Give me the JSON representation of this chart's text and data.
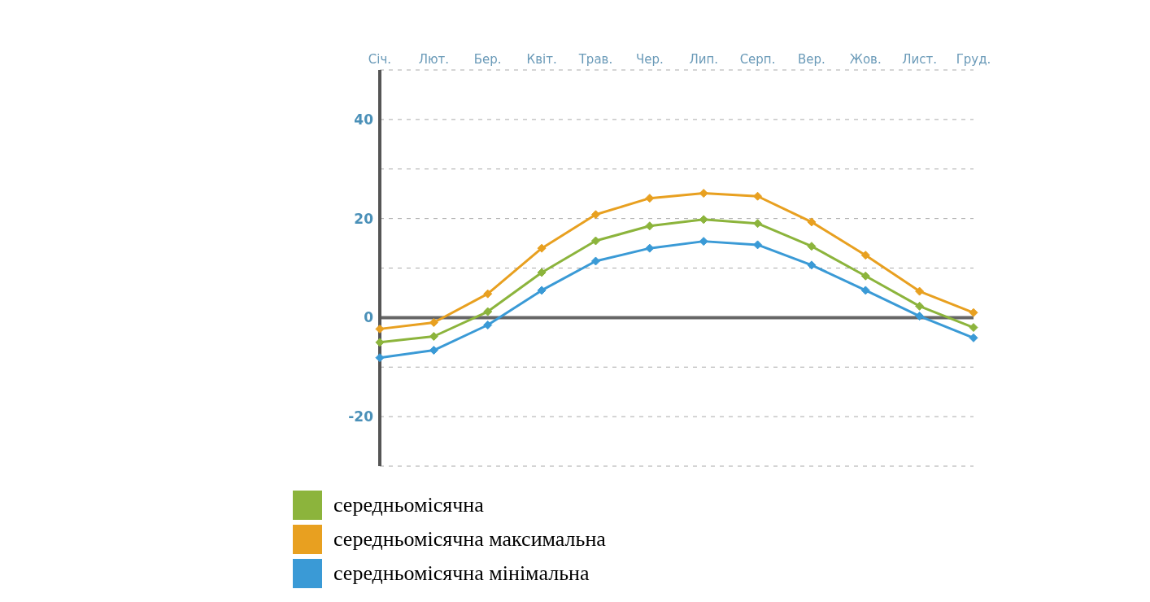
{
  "chart_data": {
    "type": "line",
    "categories": [
      "Січ.",
      "Лют.",
      "Бер.",
      "Квіт.",
      "Трав.",
      "Чер.",
      "Лип.",
      "Серп.",
      "Вер.",
      "Жов.",
      "Лист.",
      "Груд."
    ],
    "series": [
      {
        "name": "середньомісячна",
        "color": "#8cb43c",
        "values": [
          -5,
          -3.8,
          1.2,
          9.1,
          15.5,
          18.5,
          19.8,
          19,
          14.4,
          8.4,
          2.3,
          -2
        ]
      },
      {
        "name": "середньомісячна максимальна",
        "color": "#e8a020",
        "values": [
          -2.3,
          -1,
          4.8,
          14,
          20.8,
          24.1,
          25.1,
          24.5,
          19.3,
          12.6,
          5.3,
          1
        ]
      },
      {
        "name": "середньомісячна мінімальна",
        "color": "#3a9ad6",
        "values": [
          -8.1,
          -6.6,
          -1.5,
          5.5,
          11.4,
          14,
          15.4,
          14.7,
          10.6,
          5.5,
          0.3,
          -4.1
        ]
      }
    ],
    "ylim": [
      -30,
      50
    ],
    "yticks": [
      {
        "value": -30,
        "label": null
      },
      -20,
      {
        "value": -10,
        "label": null
      },
      0,
      {
        "value": 10,
        "label": null
      },
      20,
      {
        "value": 30,
        "label": null
      },
      40,
      {
        "value": 50,
        "label": null
      }
    ],
    "ref_lines": [
      {
        "axis": "y",
        "value": 0,
        "color": "#666666"
      }
    ],
    "grid": "y",
    "legend": "bottom left",
    "marker": "diamond",
    "line_style": "solid"
  }
}
